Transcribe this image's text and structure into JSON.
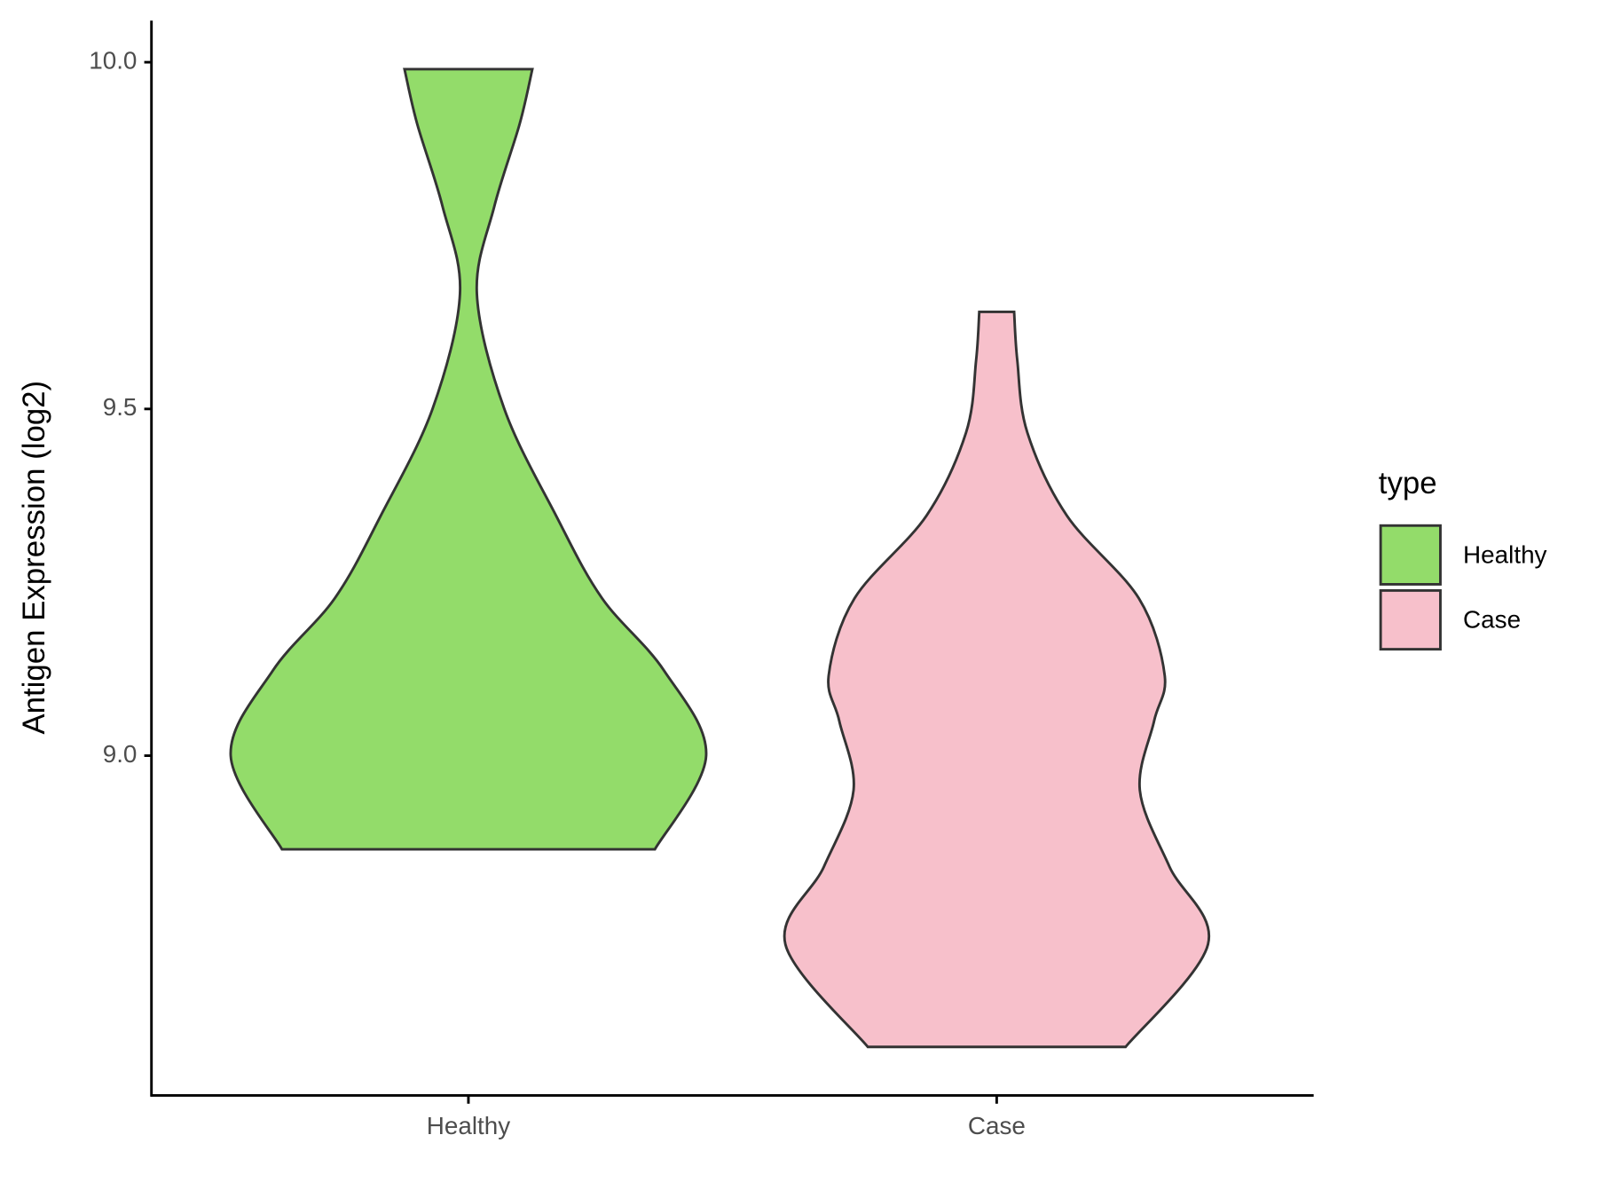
{
  "chart_data": {
    "type": "violin",
    "y_label": "Antigen Expression (log2)",
    "legend_title": "type",
    "categories": [
      "Healthy",
      "Case"
    ],
    "xlim": [
      0.4,
      2.6
    ],
    "ylim": [
      8.51,
      10.06
    ],
    "yticks": [
      {
        "value": 9,
        "label": "9.0"
      },
      9.5,
      {
        "value": 10,
        "label": "10.0"
      }
    ],
    "series": [
      {
        "name": "Healthy",
        "color": "#93dc6a",
        "y": [
          8.865,
          9.0,
          9.123,
          9.227,
          9.346,
          9.5,
          9.666,
          9.792,
          9.911,
          9.99
        ],
        "width": [
          0.353,
          0.45,
          0.37,
          0.253,
          0.166,
          0.068,
          0.016,
          0.049,
          0.097,
          0.121
        ]
      },
      {
        "name": "Case",
        "color": "#f7c0cb",
        "y": [
          8.58,
          8.728,
          8.84,
          8.95,
          9.05,
          9.116,
          9.227,
          9.346,
          9.466,
          9.57,
          9.64
        ],
        "width": [
          0.244,
          0.4,
          0.327,
          0.271,
          0.298,
          0.318,
          0.269,
          0.133,
          0.058,
          0.039,
          0.033
        ]
      }
    ]
  }
}
